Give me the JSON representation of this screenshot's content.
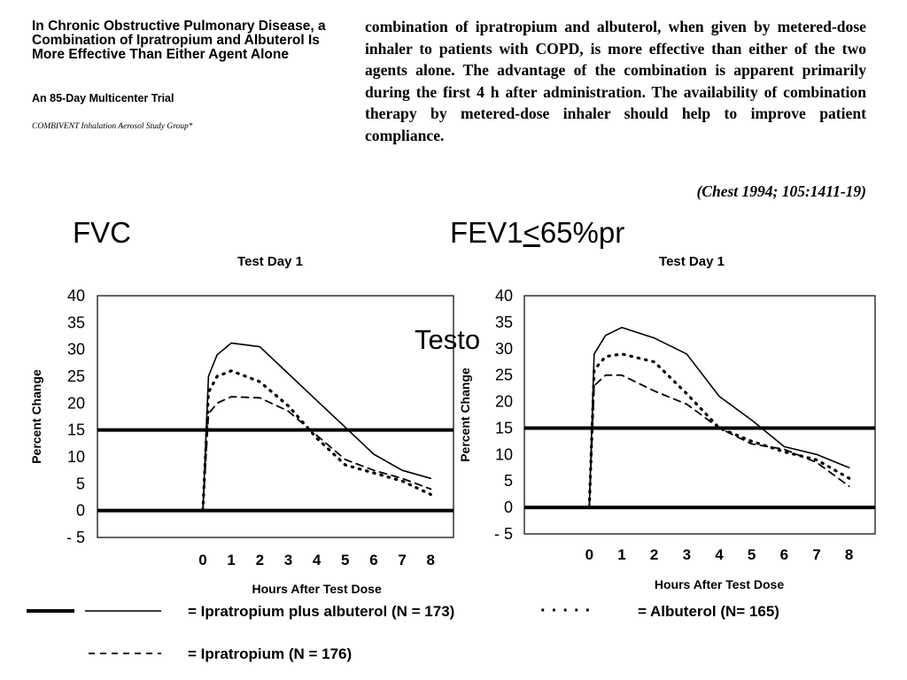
{
  "paper": {
    "title": "In Chronic Obstructive Pulmonary Disease, a Combination of Ipratropium and Albuterol Is More Effective Than Either Agent Alone",
    "subtitle": "An 85-Day Multicenter Trial",
    "group": "COMBIVENT Inhalation Aerosol Study Group*",
    "abstract": "combination of ipratropium and albuterol, when given by metered-dose inhaler to patients with COPD, is more effective than either of the two agents alone. The advantage of the combination is apparent primarily during the first 4 h after administration. The availability of combination therapy by metered-dose inhaler should help to improve patient compliance.",
    "citation": "(Chest 1994; 105:1411-19)"
  },
  "labels": {
    "fvc": "FVC",
    "fev_prefix": "FEV1",
    "fev_le": "<",
    "fev_suffix": "65%pr",
    "testo": "Testo"
  },
  "legend": {
    "combo": "= Ipratropium plus albuterol (N = 173)",
    "albuterol": "= Albuterol (N= 165)",
    "ipratropium": "= Ipratropium (N = 176)"
  },
  "styles": {
    "combo_color": "#000000",
    "albuterol_color": "#000000",
    "ipratropium_color": "#000000",
    "reference_line_color": "#000000"
  },
  "chart_data": [
    {
      "type": "line",
      "title": "Test Day 1",
      "xlabel": "Hours After Test Dose",
      "ylabel": "Percent Change",
      "xlim": [
        -3.7,
        8.8
      ],
      "ylim": [
        -5,
        40
      ],
      "y_ticks": [
        40,
        35,
        30,
        25,
        20,
        15,
        10,
        5,
        0,
        -5
      ],
      "y_tick_labels": [
        "40",
        "35",
        "30",
        "25",
        "20",
        "15",
        "10",
        "5",
        "0",
        "- 5"
      ],
      "x_ticks": [
        0,
        1,
        2,
        3,
        4,
        5,
        6,
        7,
        8
      ],
      "reference_lines": [
        15,
        0
      ],
      "grid": false,
      "series": [
        {
          "key": "combo",
          "style": "solid",
          "x": [
            0,
            0.2,
            0.5,
            1,
            2,
            3,
            4,
            5,
            6,
            7,
            8
          ],
          "y": [
            0,
            25,
            29,
            31.2,
            30.5,
            25.5,
            20.5,
            15.5,
            10.5,
            7.5,
            6
          ]
        },
        {
          "key": "albuterol",
          "style": "dotted",
          "x": [
            0,
            0.2,
            0.5,
            1,
            2,
            3,
            4,
            5,
            6,
            7,
            8
          ],
          "y": [
            0,
            22,
            25,
            26,
            24,
            19.5,
            13.5,
            8.5,
            7,
            5.5,
            3
          ]
        },
        {
          "key": "ipratropium",
          "style": "dashed",
          "x": [
            0,
            0.2,
            0.5,
            1,
            2,
            3,
            4,
            5,
            6,
            7,
            8
          ],
          "y": [
            0,
            18,
            20,
            21.2,
            21,
            18.5,
            14,
            9.5,
            7.5,
            6,
            4
          ]
        }
      ]
    },
    {
      "type": "line",
      "title": "Test Day 1",
      "xlabel": "Hours After Test Dose",
      "ylabel": "Percent Change",
      "xlim": [
        -2,
        8.8
      ],
      "ylim": [
        -5,
        40
      ],
      "y_ticks": [
        40,
        35,
        30,
        25,
        20,
        15,
        10,
        5,
        0,
        -5
      ],
      "y_tick_labels": [
        "40",
        "35",
        "30",
        "25",
        "20",
        "15",
        "10",
        "5",
        "0",
        "- 5"
      ],
      "x_ticks": [
        0,
        1,
        2,
        3,
        4,
        5,
        6,
        7,
        8
      ],
      "reference_lines": [
        15,
        0
      ],
      "grid": false,
      "series": [
        {
          "key": "combo",
          "style": "solid",
          "x": [
            0,
            0.15,
            0.5,
            1,
            2,
            3,
            4,
            5,
            6,
            7,
            8
          ],
          "y": [
            0,
            29,
            32.5,
            34,
            32,
            29,
            21,
            16.5,
            11.5,
            10,
            7.5
          ]
        },
        {
          "key": "albuterol",
          "style": "dotted",
          "x": [
            0,
            0.15,
            0.5,
            1,
            2,
            3,
            4,
            5,
            6,
            7,
            8
          ],
          "y": [
            0,
            26,
            28.5,
            29,
            27.5,
            21.5,
            15,
            12.5,
            10.5,
            9,
            5.5
          ]
        },
        {
          "key": "ipratropium",
          "style": "dashed",
          "x": [
            0,
            0.15,
            0.5,
            1,
            2,
            3,
            4,
            5,
            6,
            7,
            8
          ],
          "y": [
            0,
            23,
            25,
            25,
            22,
            19.5,
            15,
            12,
            11,
            8.5,
            4
          ]
        }
      ]
    }
  ]
}
